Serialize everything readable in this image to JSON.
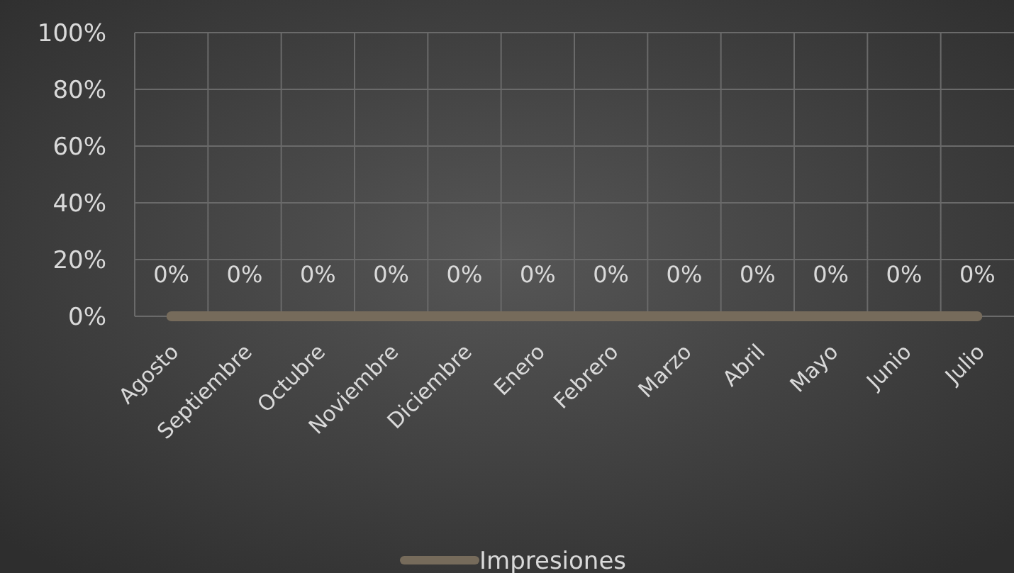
{
  "chart_data": {
    "type": "line",
    "categories": [
      "Agosto",
      "Septiembre",
      "Octubre",
      "Noviembre",
      "Diciembre",
      "Enero",
      "Febrero",
      "Marzo",
      "Abril",
      "Mayo",
      "Junio",
      "Julio"
    ],
    "series": [
      {
        "name": "Impresiones",
        "color": "#766b5b",
        "values": [
          0,
          0,
          0,
          0,
          0,
          0,
          0,
          0,
          0,
          0,
          0,
          0
        ],
        "value_labels": [
          "0%",
          "0%",
          "0%",
          "0%",
          "0%",
          "0%",
          "0%",
          "0%",
          "0%",
          "0%",
          "0%",
          "0%"
        ]
      }
    ],
    "ylim": [
      0,
      1
    ],
    "yticks": [
      {
        "value": 0,
        "label": "0%"
      },
      {
        "value": 0.2,
        "label": "20%"
      },
      {
        "value": 0.4,
        "label": "40%"
      },
      {
        "value": 0.6,
        "label": "60%"
      },
      {
        "value": 0.8,
        "label": "80%"
      },
      {
        "value": 1,
        "label": "100%"
      }
    ],
    "grid": true,
    "legend": "bottom",
    "marker": "none",
    "line_style": "solid"
  }
}
